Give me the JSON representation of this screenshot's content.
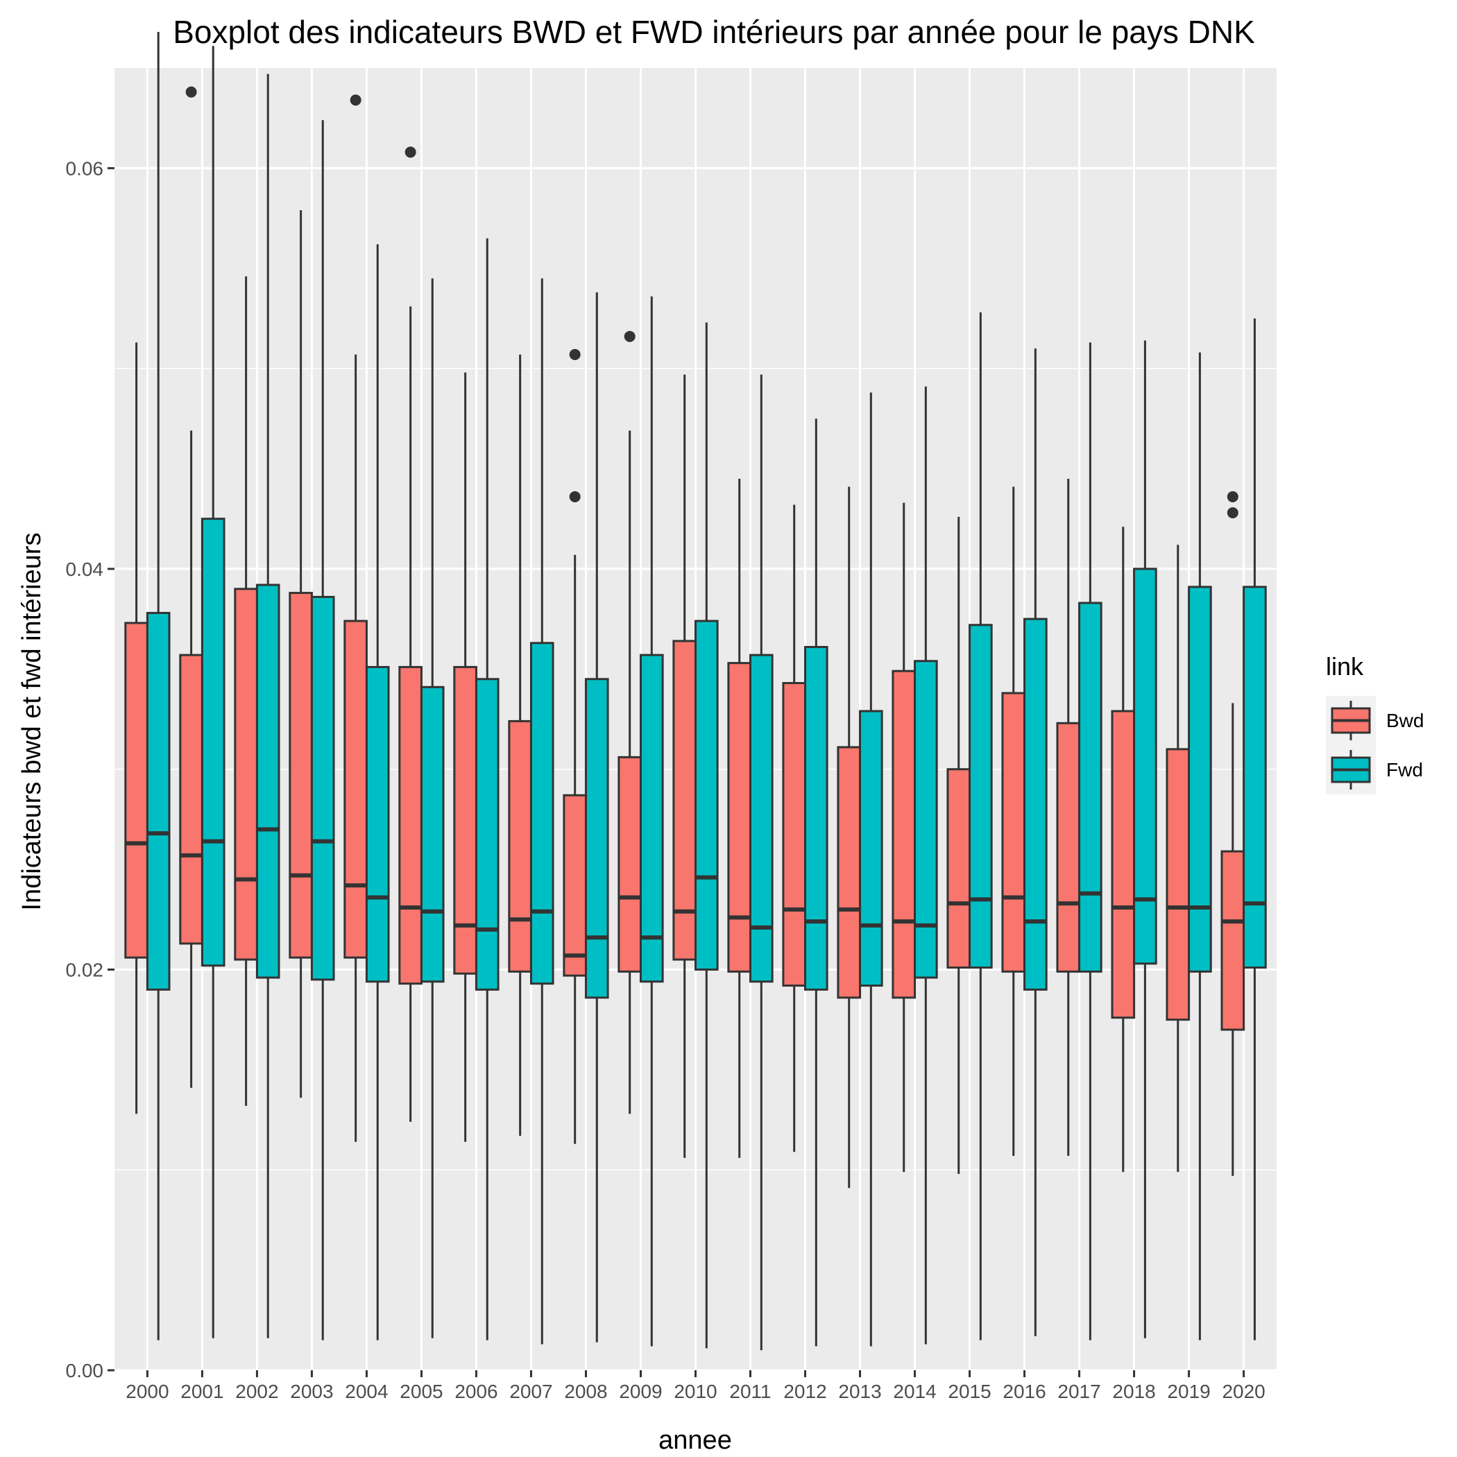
{
  "chart_data": {
    "type": "boxplot",
    "title": "Boxplot des indicateurs BWD et FWD intérieurs par année pour le pays DNK",
    "xlabel": "annee",
    "ylabel": "Indicateurs bwd et fwd intérieurs",
    "ylim": [
      0,
      0.065
    ],
    "yticks": [
      0.0,
      0.02,
      0.04,
      0.06
    ],
    "ytick_labels": [
      "0.00",
      "0.02",
      "0.04",
      "0.06"
    ],
    "grid": true,
    "panel_background": "#ebebeb",
    "categories": [
      "2000",
      "2001",
      "2002",
      "2003",
      "2004",
      "2005",
      "2006",
      "2007",
      "2008",
      "2009",
      "2010",
      "2011",
      "2012",
      "2013",
      "2014",
      "2015",
      "2016",
      "2017",
      "2018",
      "2019",
      "2020"
    ],
    "legend": {
      "title": "link",
      "position": "right"
    },
    "series": [
      {
        "name": "Bwd",
        "color": "#f8766d",
        "boxes": [
          {
            "min": 0.0128,
            "q1": 0.0206,
            "median": 0.0263,
            "q3": 0.0373,
            "max": 0.0513,
            "outliers": []
          },
          {
            "min": 0.0141,
            "q1": 0.0213,
            "median": 0.0257,
            "q3": 0.0357,
            "max": 0.0469,
            "outliers": [
              0.0638
            ]
          },
          {
            "min": 0.0132,
            "q1": 0.0205,
            "median": 0.0245,
            "q3": 0.039,
            "max": 0.0546,
            "outliers": []
          },
          {
            "min": 0.0136,
            "q1": 0.0206,
            "median": 0.0247,
            "q3": 0.0388,
            "max": 0.0579,
            "outliers": []
          },
          {
            "min": 0.0114,
            "q1": 0.0206,
            "median": 0.0242,
            "q3": 0.0374,
            "max": 0.0507,
            "outliers": [
              0.0634
            ]
          },
          {
            "min": 0.0124,
            "q1": 0.0193,
            "median": 0.0231,
            "q3": 0.0351,
            "max": 0.0531,
            "outliers": [
              0.0608
            ]
          },
          {
            "min": 0.0114,
            "q1": 0.0198,
            "median": 0.0222,
            "q3": 0.0351,
            "max": 0.0498,
            "outliers": []
          },
          {
            "min": 0.0117,
            "q1": 0.0199,
            "median": 0.0225,
            "q3": 0.0324,
            "max": 0.0507,
            "outliers": []
          },
          {
            "min": 0.0113,
            "q1": 0.0197,
            "median": 0.0207,
            "q3": 0.0287,
            "max": 0.0407,
            "outliers": [
              0.0436,
              0.0507
            ]
          },
          {
            "min": 0.0128,
            "q1": 0.0199,
            "median": 0.0236,
            "q3": 0.0306,
            "max": 0.0469,
            "outliers": [
              0.0516
            ]
          },
          {
            "min": 0.0106,
            "q1": 0.0205,
            "median": 0.0229,
            "q3": 0.0364,
            "max": 0.0497,
            "outliers": []
          },
          {
            "min": 0.0106,
            "q1": 0.0199,
            "median": 0.0226,
            "q3": 0.0353,
            "max": 0.0445,
            "outliers": []
          },
          {
            "min": 0.0109,
            "q1": 0.0192,
            "median": 0.023,
            "q3": 0.0343,
            "max": 0.0432,
            "outliers": []
          },
          {
            "min": 0.0091,
            "q1": 0.0186,
            "median": 0.023,
            "q3": 0.0311,
            "max": 0.0441,
            "outliers": []
          },
          {
            "min": 0.0099,
            "q1": 0.0186,
            "median": 0.0224,
            "q3": 0.0349,
            "max": 0.0433,
            "outliers": []
          },
          {
            "min": 0.0098,
            "q1": 0.0201,
            "median": 0.0233,
            "q3": 0.03,
            "max": 0.0426,
            "outliers": []
          },
          {
            "min": 0.0107,
            "q1": 0.0199,
            "median": 0.0236,
            "q3": 0.0338,
            "max": 0.0441,
            "outliers": []
          },
          {
            "min": 0.0107,
            "q1": 0.0199,
            "median": 0.0233,
            "q3": 0.0323,
            "max": 0.0445,
            "outliers": []
          },
          {
            "min": 0.0099,
            "q1": 0.0176,
            "median": 0.0231,
            "q3": 0.0329,
            "max": 0.0421,
            "outliers": []
          },
          {
            "min": 0.0099,
            "q1": 0.0175,
            "median": 0.0231,
            "q3": 0.031,
            "max": 0.0412,
            "outliers": []
          },
          {
            "min": 0.0097,
            "q1": 0.017,
            "median": 0.0224,
            "q3": 0.0259,
            "max": 0.0333,
            "outliers": [
              0.0436,
              0.0428
            ]
          }
        ]
      },
      {
        "name": "Fwd",
        "color": "#00bfc4",
        "boxes": [
          {
            "min": 0.0015,
            "q1": 0.019,
            "median": 0.0268,
            "q3": 0.0378,
            "max": 0.0668,
            "outliers": []
          },
          {
            "min": 0.0016,
            "q1": 0.0202,
            "median": 0.0264,
            "q3": 0.0425,
            "max": 0.0661,
            "outliers": []
          },
          {
            "min": 0.0016,
            "q1": 0.0196,
            "median": 0.027,
            "q3": 0.0392,
            "max": 0.0647,
            "outliers": []
          },
          {
            "min": 0.0015,
            "q1": 0.0195,
            "median": 0.0264,
            "q3": 0.0386,
            "max": 0.0624,
            "outliers": []
          },
          {
            "min": 0.0015,
            "q1": 0.0194,
            "median": 0.0236,
            "q3": 0.0351,
            "max": 0.0562,
            "outliers": []
          },
          {
            "min": 0.0016,
            "q1": 0.0194,
            "median": 0.0229,
            "q3": 0.0341,
            "max": 0.0545,
            "outliers": []
          },
          {
            "min": 0.0015,
            "q1": 0.019,
            "median": 0.022,
            "q3": 0.0345,
            "max": 0.0565,
            "outliers": []
          },
          {
            "min": 0.0013,
            "q1": 0.0193,
            "median": 0.0229,
            "q3": 0.0363,
            "max": 0.0545,
            "outliers": []
          },
          {
            "min": 0.0014,
            "q1": 0.0186,
            "median": 0.0216,
            "q3": 0.0345,
            "max": 0.0538,
            "outliers": []
          },
          {
            "min": 0.0012,
            "q1": 0.0194,
            "median": 0.0216,
            "q3": 0.0357,
            "max": 0.0536,
            "outliers": []
          },
          {
            "min": 0.0011,
            "q1": 0.02,
            "median": 0.0246,
            "q3": 0.0374,
            "max": 0.0523,
            "outliers": []
          },
          {
            "min": 0.001,
            "q1": 0.0194,
            "median": 0.0221,
            "q3": 0.0357,
            "max": 0.0497,
            "outliers": []
          },
          {
            "min": 0.0012,
            "q1": 0.019,
            "median": 0.0224,
            "q3": 0.0361,
            "max": 0.0475,
            "outliers": []
          },
          {
            "min": 0.0012,
            "q1": 0.0192,
            "median": 0.0222,
            "q3": 0.0329,
            "max": 0.0488,
            "outliers": []
          },
          {
            "min": 0.0013,
            "q1": 0.0196,
            "median": 0.0222,
            "q3": 0.0354,
            "max": 0.0491,
            "outliers": []
          },
          {
            "min": 0.0015,
            "q1": 0.0201,
            "median": 0.0235,
            "q3": 0.0372,
            "max": 0.0528,
            "outliers": []
          },
          {
            "min": 0.0017,
            "q1": 0.019,
            "median": 0.0224,
            "q3": 0.0375,
            "max": 0.051,
            "outliers": []
          },
          {
            "min": 0.0015,
            "q1": 0.0199,
            "median": 0.0238,
            "q3": 0.0383,
            "max": 0.0513,
            "outliers": []
          },
          {
            "min": 0.0016,
            "q1": 0.0203,
            "median": 0.0235,
            "q3": 0.04,
            "max": 0.0514,
            "outliers": []
          },
          {
            "min": 0.0015,
            "q1": 0.0199,
            "median": 0.0231,
            "q3": 0.0391,
            "max": 0.0508,
            "outliers": []
          },
          {
            "min": 0.0015,
            "q1": 0.0201,
            "median": 0.0233,
            "q3": 0.0391,
            "max": 0.0525,
            "outliers": []
          }
        ]
      }
    ]
  }
}
